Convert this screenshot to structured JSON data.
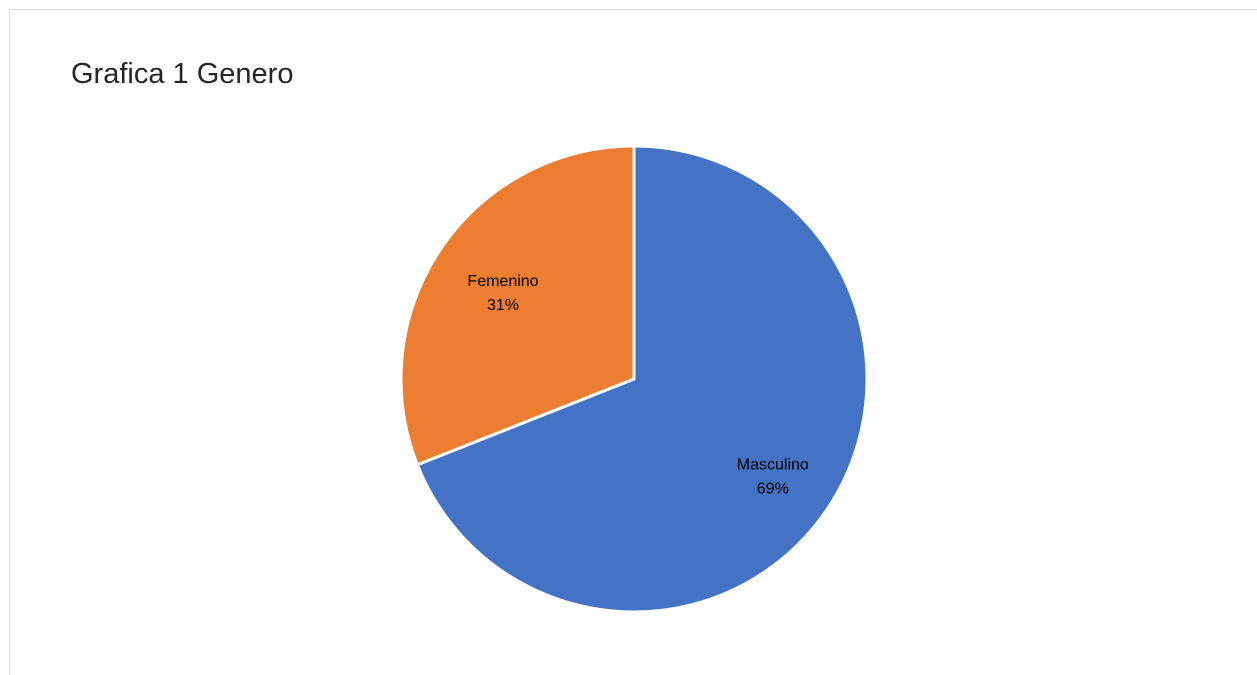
{
  "chart_data": {
    "type": "pie",
    "title": "Grafica 1 Genero",
    "slices": [
      {
        "label": "Masculino",
        "value": 69,
        "value_label": "69%",
        "color": "#4472c4"
      },
      {
        "label": "Femenino",
        "value": 31,
        "value_label": "31%",
        "color": "#ed7d31"
      }
    ],
    "start_angle": "12 o'clock",
    "direction": "clockwise",
    "legend": "none",
    "data_labels": "category and percentage inside slices"
  }
}
